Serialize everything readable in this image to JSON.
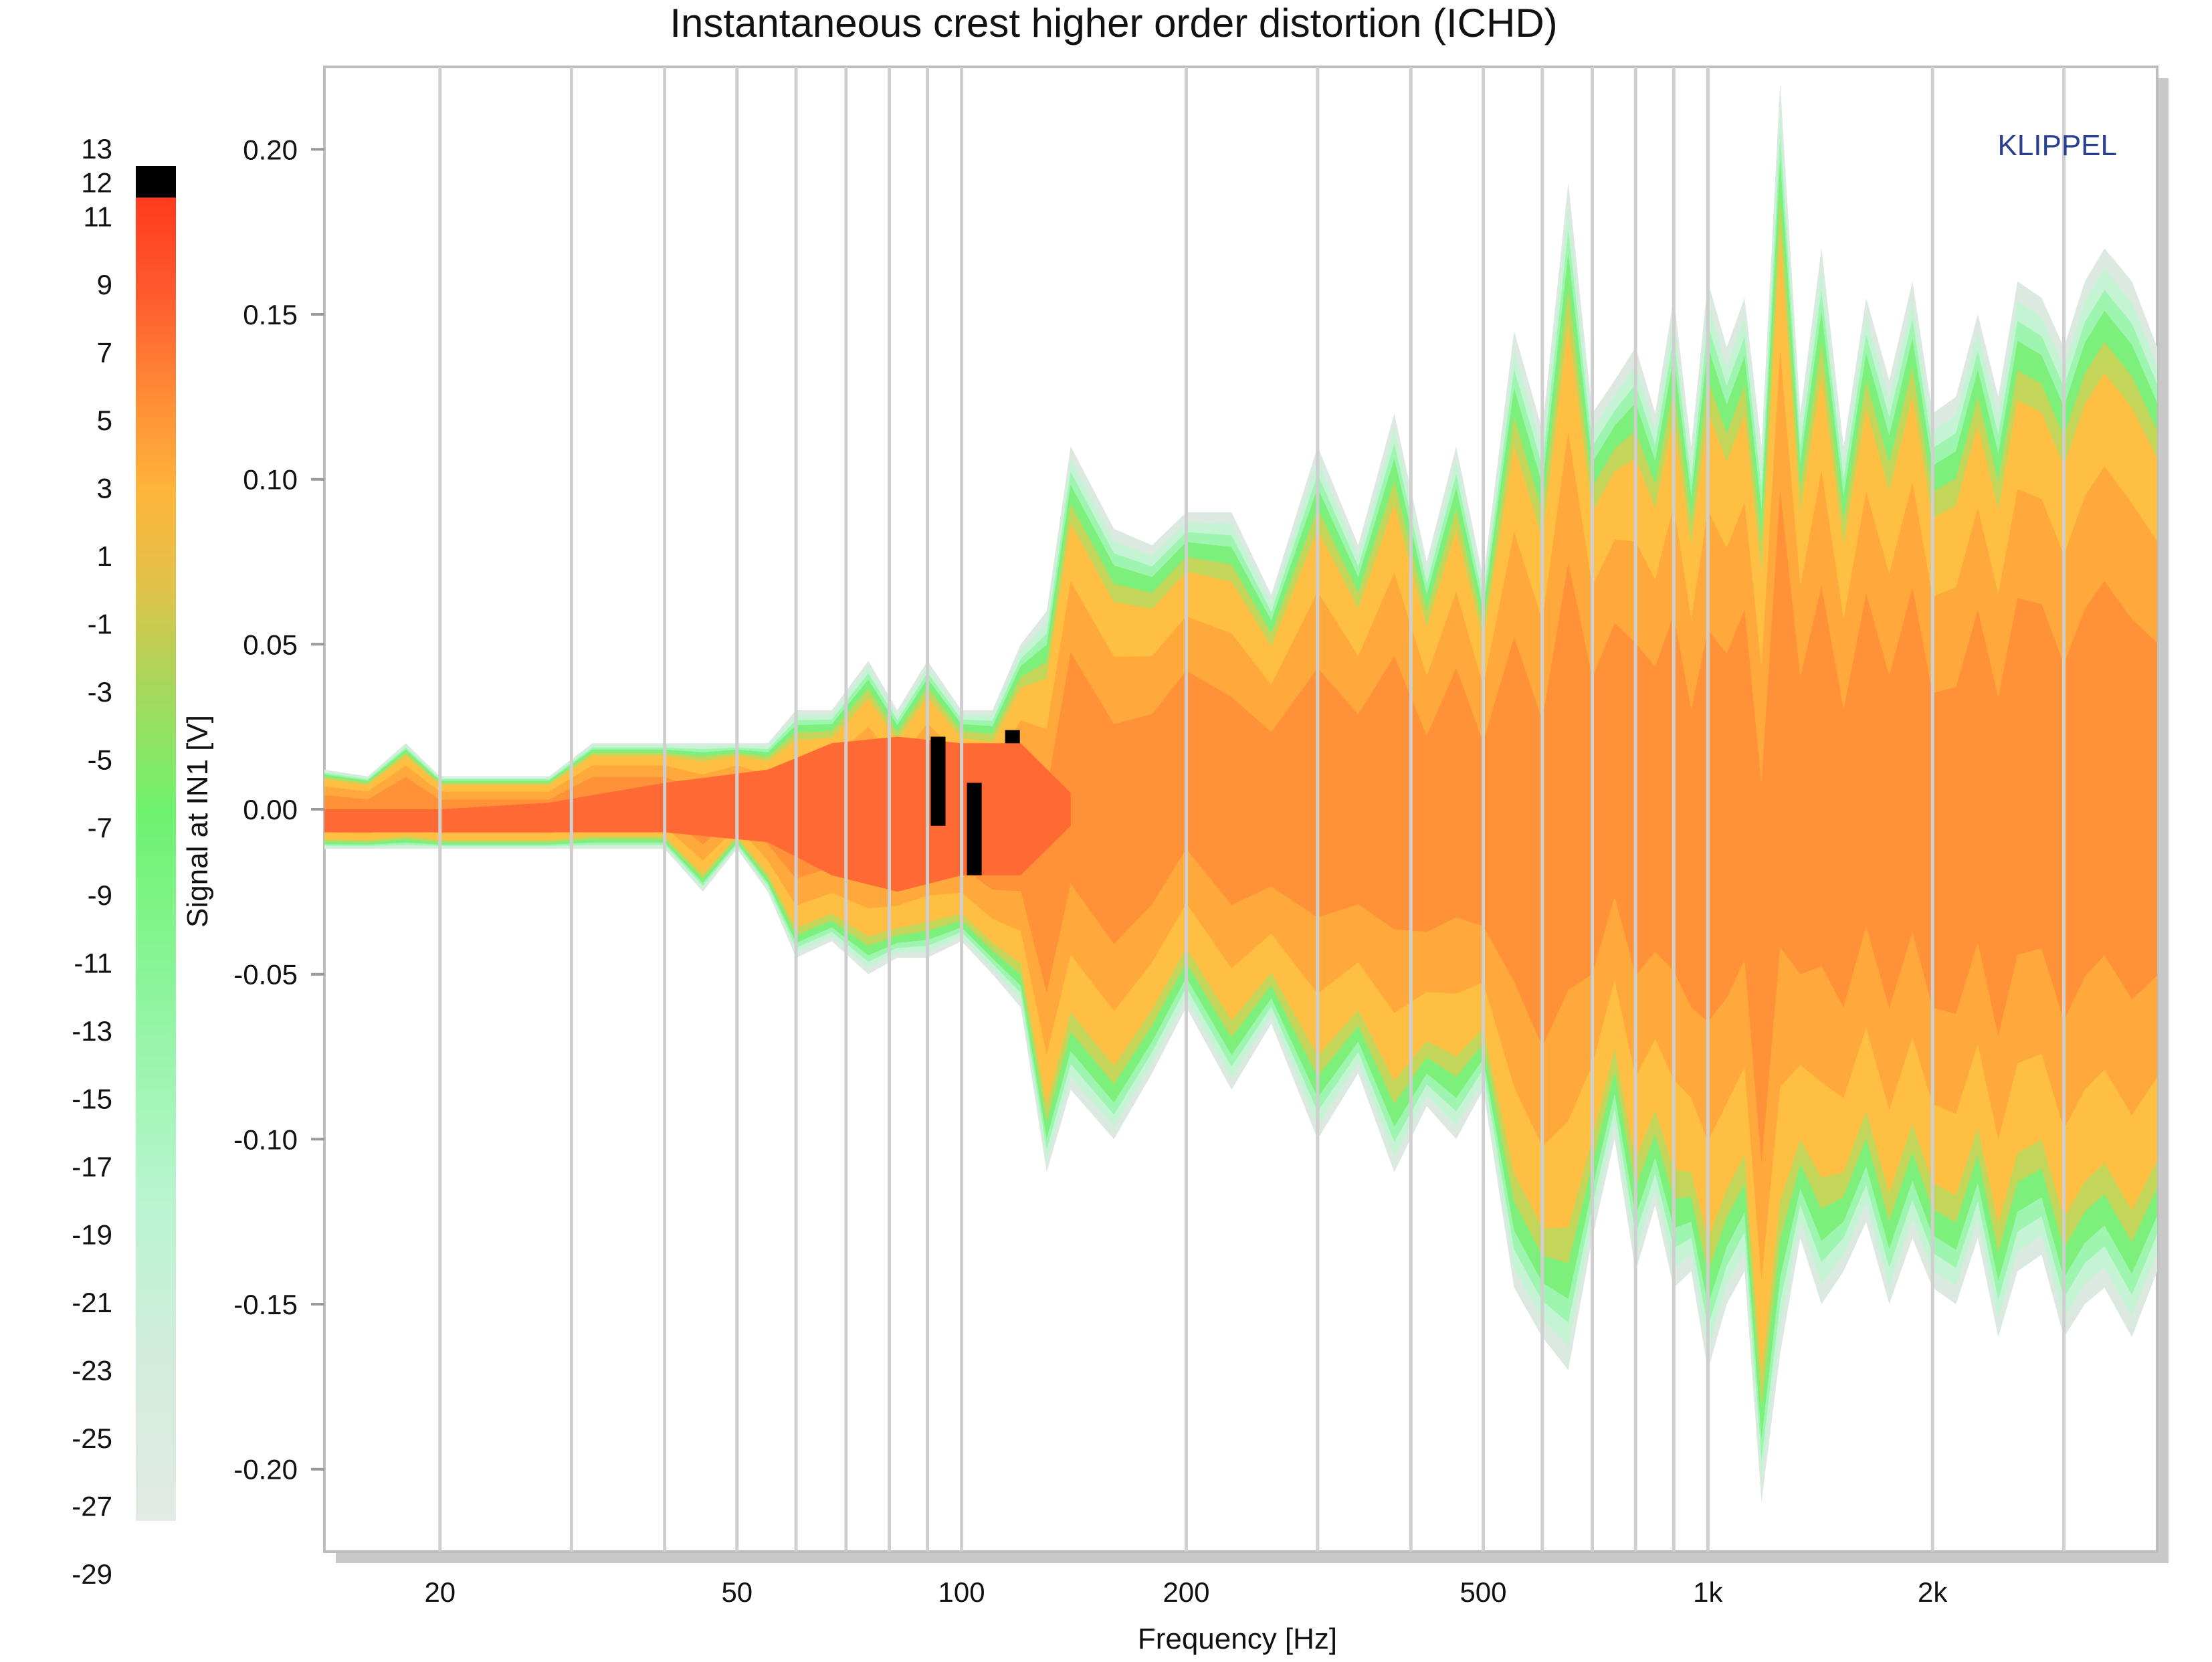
{
  "chart_data": {
    "type": "heatmap",
    "title": "Instantaneous crest higher order distortion (ICHD)",
    "xlabel": "Frequency [Hz]",
    "ylabel": "Signal at IN1  [V]",
    "watermark": "KLIPPEL",
    "x_scale": "log",
    "xlim": [
      14,
      4000
    ],
    "ylim": [
      -0.225,
      0.225
    ],
    "x_ticks": [
      20,
      50,
      100,
      200,
      500,
      1000,
      2000
    ],
    "x_tick_labels": [
      "20",
      "50",
      "100",
      "200",
      "500",
      "1k",
      "2k"
    ],
    "x_gridlines": [
      20,
      30,
      40,
      50,
      60,
      70,
      80,
      90,
      100,
      200,
      300,
      400,
      500,
      600,
      700,
      800,
      900,
      1000,
      2000,
      3000
    ],
    "y_ticks": [
      0.2,
      0.15,
      0.1,
      0.05,
      0.0,
      -0.05,
      -0.1,
      -0.15,
      -0.2
    ],
    "y_tick_labels": [
      "0.20",
      "0.15",
      "0.10",
      "0.05",
      "0.00",
      "-0.05",
      "-0.10",
      "-0.15",
      "-0.20"
    ],
    "colorbar": {
      "labels": [
        "13",
        "12",
        "11",
        "9",
        "7",
        "5",
        "3",
        "1",
        "-1",
        "-3",
        "-5",
        "-7",
        "-9",
        "-11",
        "-13",
        "-15",
        "-17",
        "-19",
        "-21",
        "-23",
        "-25",
        "-27",
        "-29"
      ],
      "values": [
        13,
        12,
        11,
        9,
        7,
        5,
        3,
        1,
        -1,
        -3,
        -5,
        -7,
        -9,
        -11,
        -13,
        -15,
        -17,
        -19,
        -21,
        -23,
        -25,
        -27,
        -29
      ],
      "range": [
        -29,
        13
      ],
      "stops": [
        {
          "v": 13,
          "color": "#000000"
        },
        {
          "v": 12,
          "color": "#ff3b1c"
        },
        {
          "v": 9,
          "color": "#ff5b2e"
        },
        {
          "v": 6,
          "color": "#ff8a36"
        },
        {
          "v": 3,
          "color": "#ffb43a"
        },
        {
          "v": 0,
          "color": "#e2c24a"
        },
        {
          "v": -3,
          "color": "#a9d65a"
        },
        {
          "v": -7,
          "color": "#6ef26e"
        },
        {
          "v": -13,
          "color": "#8ff5a0"
        },
        {
          "v": -19,
          "color": "#b8f5cf"
        },
        {
          "v": -24,
          "color": "#d2ecdc"
        },
        {
          "v": -29,
          "color": "#e2ebe5"
        }
      ]
    },
    "envelope": {
      "frequency": [
        14,
        16,
        18,
        20,
        24,
        28,
        32,
        36,
        40,
        45,
        50,
        55,
        60,
        67,
        75,
        82,
        90,
        100,
        110,
        120,
        130,
        140,
        160,
        180,
        200,
        230,
        260,
        300,
        340,
        380,
        420,
        460,
        500,
        550,
        600,
        650,
        700,
        750,
        800,
        850,
        900,
        950,
        1000,
        1060,
        1120,
        1180,
        1250,
        1330,
        1420,
        1520,
        1630,
        1750,
        1880,
        2000,
        2150,
        2300,
        2450,
        2600,
        2800,
        3000,
        3200,
        3400,
        3700,
        4000
      ],
      "upper": [
        0.012,
        0.01,
        0.02,
        0.01,
        0.01,
        0.01,
        0.02,
        0.02,
        0.02,
        0.02,
        0.02,
        0.02,
        0.03,
        0.03,
        0.045,
        0.03,
        0.045,
        0.03,
        0.03,
        0.05,
        0.06,
        0.11,
        0.085,
        0.08,
        0.09,
        0.09,
        0.065,
        0.11,
        0.08,
        0.12,
        0.075,
        0.11,
        0.07,
        0.145,
        0.115,
        0.19,
        0.12,
        0.13,
        0.14,
        0.12,
        0.155,
        0.11,
        0.16,
        0.14,
        0.155,
        0.11,
        0.22,
        0.12,
        0.17,
        0.11,
        0.155,
        0.13,
        0.16,
        0.12,
        0.125,
        0.15,
        0.125,
        0.16,
        0.155,
        0.14,
        0.16,
        0.17,
        0.16,
        0.14
      ],
      "lower": [
        -0.012,
        -0.012,
        -0.012,
        -0.012,
        -0.012,
        -0.012,
        -0.012,
        -0.012,
        -0.012,
        -0.025,
        -0.012,
        -0.025,
        -0.045,
        -0.04,
        -0.05,
        -0.045,
        -0.045,
        -0.04,
        -0.05,
        -0.06,
        -0.11,
        -0.085,
        -0.1,
        -0.08,
        -0.06,
        -0.085,
        -0.065,
        -0.1,
        -0.08,
        -0.11,
        -0.09,
        -0.1,
        -0.085,
        -0.145,
        -0.16,
        -0.17,
        -0.13,
        -0.1,
        -0.14,
        -0.12,
        -0.145,
        -0.14,
        -0.17,
        -0.15,
        -0.14,
        -0.21,
        -0.165,
        -0.13,
        -0.15,
        -0.14,
        -0.125,
        -0.15,
        -0.13,
        -0.145,
        -0.15,
        -0.13,
        -0.16,
        -0.14,
        -0.135,
        -0.16,
        -0.15,
        -0.145,
        -0.16,
        -0.14
      ]
    },
    "hotspots": [
      {
        "frequency": 93,
        "y_min": -0.005,
        "y_max": 0.022,
        "level": 13
      },
      {
        "frequency": 104,
        "y_min": -0.02,
        "y_max": 0.008,
        "level": 13
      },
      {
        "frequency": 117,
        "y_min": 0.02,
        "y_max": 0.024,
        "level": 13
      }
    ],
    "grid": true,
    "legend": "colorbar-left"
  }
}
